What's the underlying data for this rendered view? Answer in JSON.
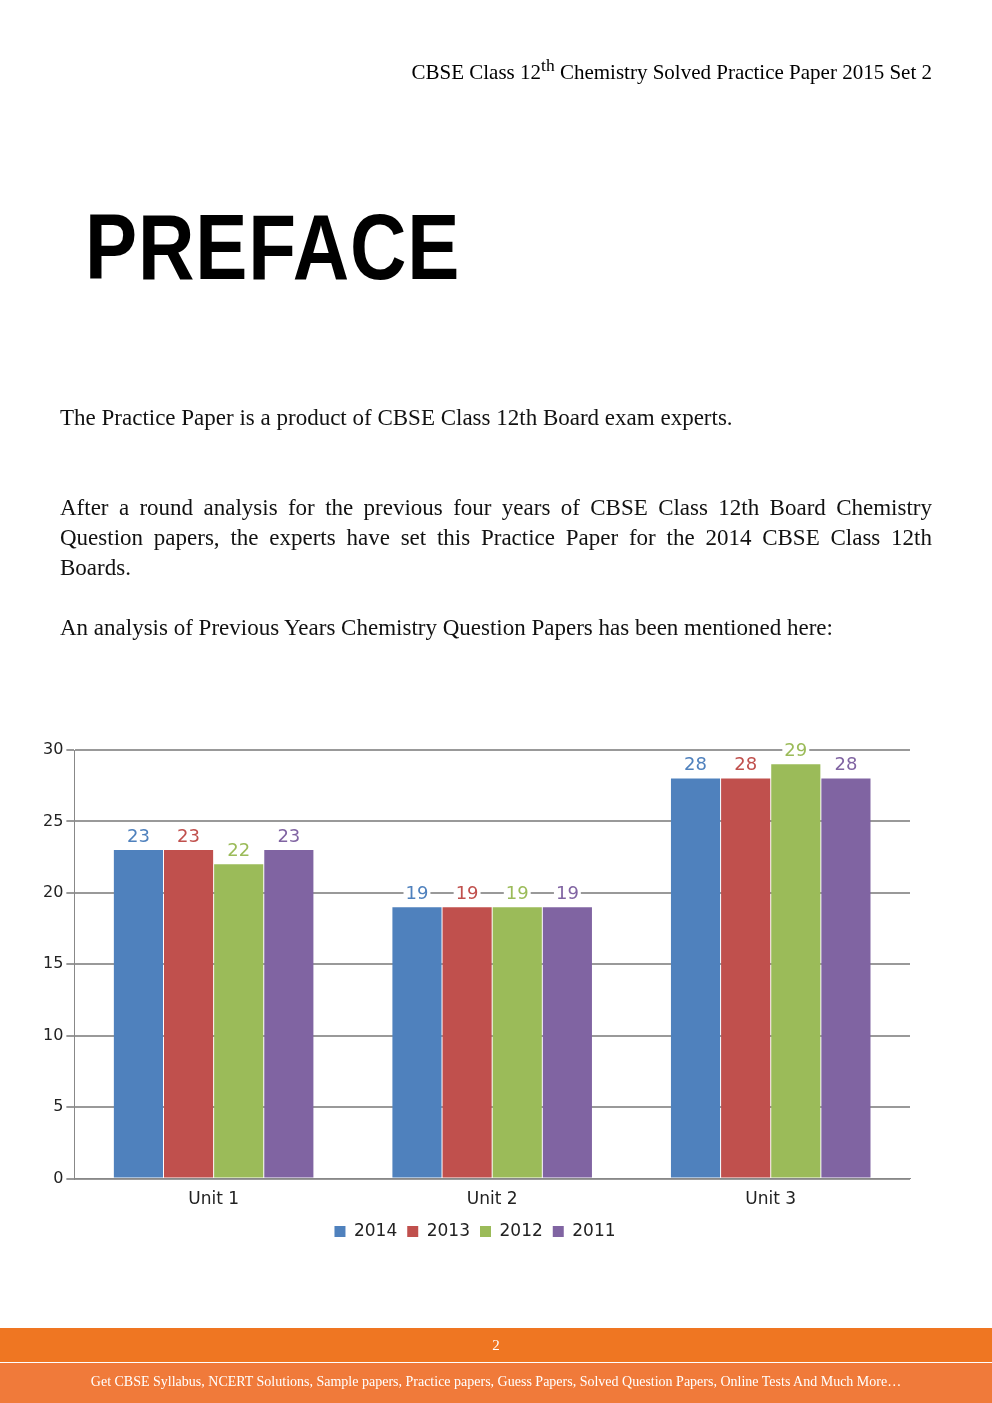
{
  "chart_data": {
    "type": "bar",
    "title": "PREFACE",
    "subtitle": "CBSE Class 12$^{th}$ Chemistry Solved Practice Paper 2015 Set 2",
    "annotations": [
      "The Practice Paper is a product of CBSE Class 12th Board exam experts.",
      "After a round analysis for the previous four years of CBSE Class 12th Board Chemistry Question papers, the experts have set this Practice Paper for the 2014 CBSE Class 12th Boards.",
      "An analysis of Previous Years Chemistry Question Papers has been mentioned here:",
      "2",
      "Get CBSE Syllabus, NCERT Solutions, Sample papers, Practice papers, Guess Papers, Solved Question Papers, Online Tests And Much More…"
    ],
    "categories": [
      "Unit 1",
      "Unit 2",
      "Unit 3"
    ],
    "series": [
      {
        "name": "2014",
        "color": "#4f81bd",
        "values": [
          23,
          19,
          28
        ]
      },
      {
        "name": "2013",
        "color": "#c0504d",
        "values": [
          23,
          19,
          28
        ]
      },
      {
        "name": "2012",
        "color": "#9bbb59",
        "values": [
          22,
          19,
          29
        ]
      },
      {
        "name": "2011",
        "color": "#8064a2",
        "values": [
          23,
          19,
          28
        ]
      }
    ],
    "ylim": [
      0,
      30
    ],
    "yticks": [
      0,
      5,
      10,
      15,
      20,
      25,
      30
    ],
    "grid": "y",
    "legend": "bottom",
    "data_labels": true
  }
}
